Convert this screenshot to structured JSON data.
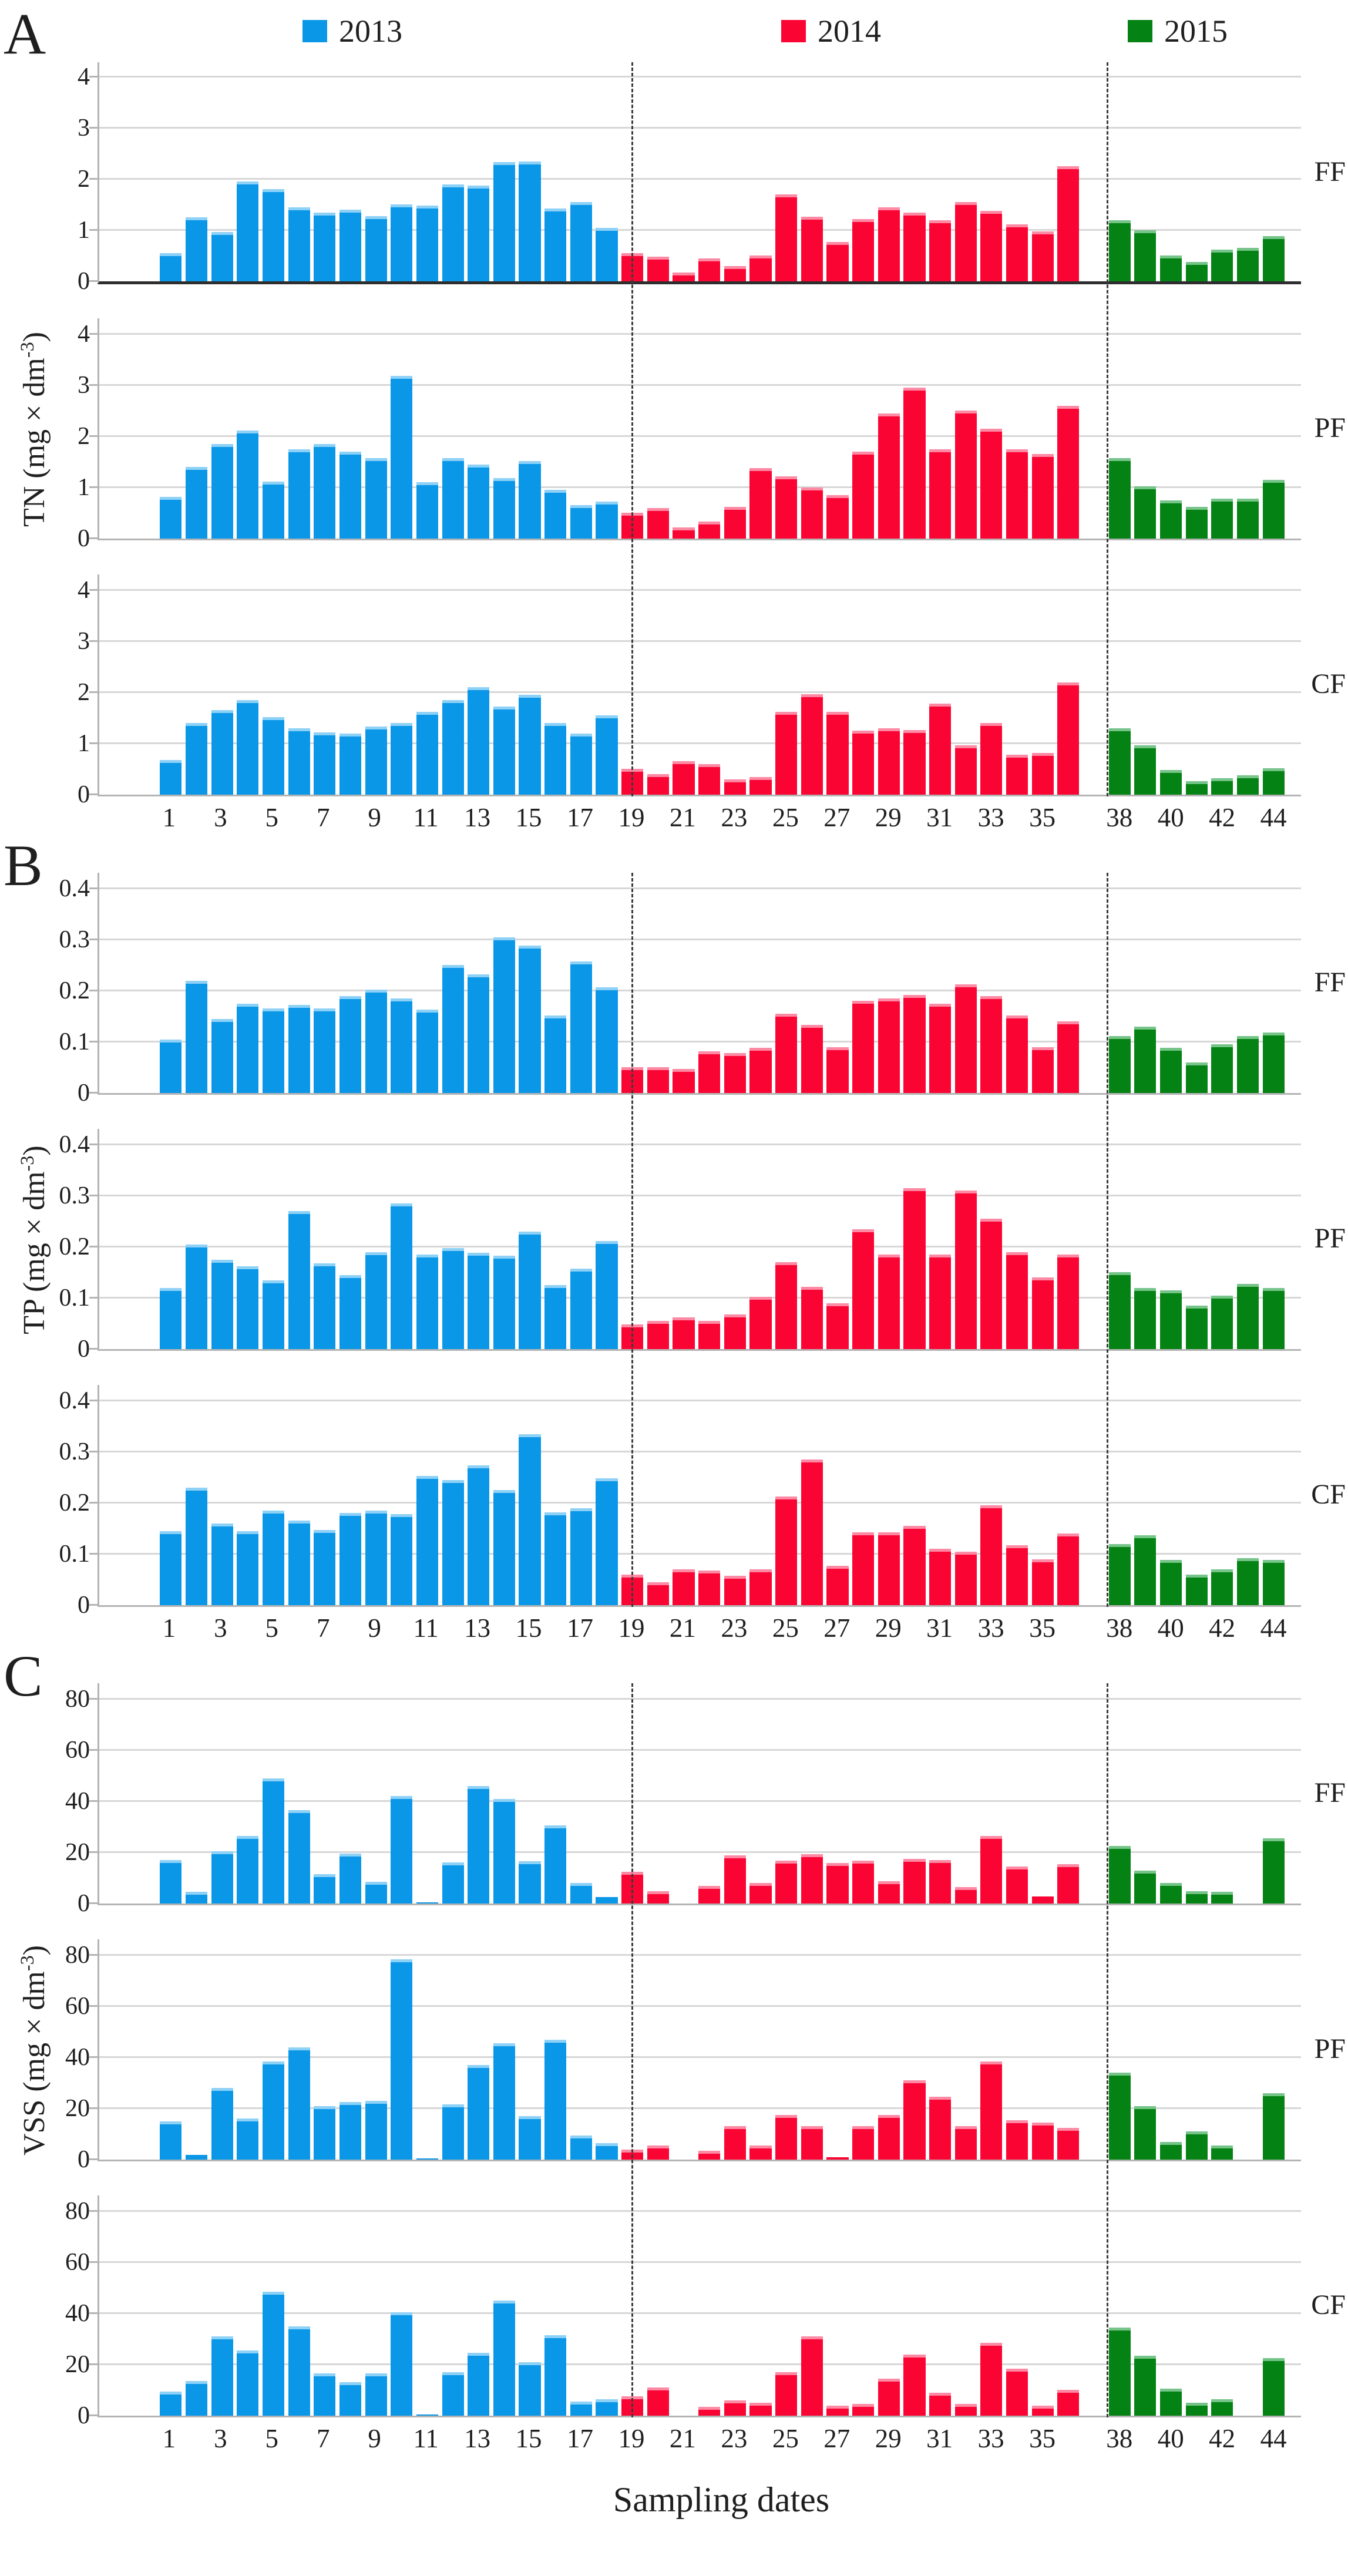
{
  "legend": {
    "items": [
      {
        "label": "2013",
        "color": "#0a97e8"
      },
      {
        "label": "2014",
        "color": "#fa0433"
      },
      {
        "label": "2015",
        "color": "#048213"
      }
    ]
  },
  "groups": [
    {
      "letter": "A",
      "y_title": {
        "pre": "TN (mg × dm",
        "sup": "-3",
        "post": ")"
      }
    },
    {
      "letter": "B",
      "y_title": {
        "pre": "TP (mg × dm",
        "sup": "-3",
        "post": ")"
      }
    },
    {
      "letter": "C",
      "y_title": {
        "pre": "VSS (mg × dm",
        "sup": "-3",
        "post": ")"
      }
    }
  ],
  "x_axis": {
    "title": "Sampling dates",
    "tick_labels": [
      "1",
      "3",
      "5",
      "7",
      "9",
      "11",
      "13",
      "15",
      "17",
      "19",
      "21",
      "23",
      "25",
      "27",
      "29",
      "31",
      "33",
      "35",
      "38",
      "40",
      "42",
      "44"
    ],
    "tick_slots": [
      1,
      3,
      5,
      7,
      9,
      11,
      13,
      15,
      17,
      19,
      21,
      23,
      25,
      27,
      29,
      31,
      33,
      35,
      38,
      40,
      42,
      44
    ]
  },
  "colors": {
    "grid": "#d7d7d7",
    "axis": "#b4b4b4",
    "separator": "#3c3c3c",
    "bar_caps": {
      "2013": "#8ed1f7",
      "2014": "#fc8aa4",
      "2015": "#76c489"
    }
  },
  "chart_data": {
    "type": "bar",
    "title": "TN, TP and VSS concentrations at sites FF, PF, CF over sampling dates 1–44",
    "xlabel": "Sampling dates",
    "grid": true,
    "legend_position": "top",
    "n_slots": 44,
    "empty_slots": [
      37
    ],
    "periods": [
      {
        "year": "2013",
        "color": "#0a97e8",
        "date_range": [
          1,
          18
        ]
      },
      {
        "year": "2014",
        "color": "#fa0433",
        "date_range": [
          19,
          36
        ]
      },
      {
        "year": "2015",
        "color": "#048213",
        "date_range": [
          38,
          44
        ]
      }
    ],
    "separator_positions": [
      18.5,
      37
    ],
    "x_tick_labels": [
      "1",
      "3",
      "5",
      "7",
      "9",
      "11",
      "13",
      "15",
      "17",
      "19",
      "21",
      "23",
      "25",
      "27",
      "29",
      "31",
      "33",
      "35",
      "38",
      "40",
      "42",
      "44"
    ],
    "panels": [
      {
        "group": "A",
        "site": "FF",
        "measure": "TN",
        "ylabel": "TN (mg × dm⁻³)",
        "ylim": [
          0,
          4.35
        ],
        "yticks": [
          0,
          1,
          2,
          3,
          4
        ],
        "values": [
          0.55,
          1.25,
          0.97,
          1.95,
          1.8,
          1.45,
          1.35,
          1.4,
          1.28,
          1.5,
          1.48,
          1.9,
          1.87,
          2.33,
          2.35,
          1.43,
          1.55,
          1.05,
          0.55,
          0.48,
          0.17,
          0.45,
          0.3,
          0.5,
          1.7,
          1.27,
          0.77,
          1.22,
          1.45,
          1.35,
          1.2,
          1.55,
          1.38,
          1.12,
          0.98,
          2.25,
          null,
          1.2,
          1.0,
          0.5,
          0.38,
          0.62,
          0.65,
          0.88
        ]
      },
      {
        "group": "A",
        "site": "PF",
        "measure": "TN",
        "ylabel": "TN (mg × dm⁻³)",
        "ylim": [
          0,
          4.35
        ],
        "yticks": [
          0,
          1,
          2,
          3,
          4
        ],
        "values": [
          0.82,
          1.4,
          1.85,
          2.12,
          1.12,
          1.75,
          1.85,
          1.7,
          1.58,
          3.18,
          1.1,
          1.58,
          1.45,
          1.18,
          1.52,
          0.95,
          0.65,
          0.72,
          0.5,
          0.6,
          0.22,
          0.33,
          0.62,
          1.38,
          1.22,
          1.0,
          0.85,
          1.7,
          2.45,
          2.95,
          1.75,
          2.5,
          2.15,
          1.75,
          1.65,
          2.6,
          null,
          1.58,
          1.02,
          0.75,
          0.62,
          0.78,
          0.78,
          1.15
        ]
      },
      {
        "group": "A",
        "site": "CF",
        "measure": "TN",
        "ylabel": "TN (mg × dm⁻³)",
        "ylim": [
          0,
          4.35
        ],
        "yticks": [
          0,
          1,
          2,
          3,
          4
        ],
        "values": [
          0.68,
          1.4,
          1.65,
          1.85,
          1.52,
          1.3,
          1.22,
          1.2,
          1.33,
          1.4,
          1.62,
          1.85,
          2.1,
          1.72,
          1.95,
          1.4,
          1.2,
          1.55,
          0.5,
          0.4,
          0.65,
          0.6,
          0.3,
          0.35,
          1.62,
          1.97,
          1.62,
          1.25,
          1.3,
          1.27,
          1.78,
          0.97,
          1.4,
          0.78,
          0.82,
          2.2,
          null,
          1.3,
          0.97,
          0.48,
          0.27,
          0.32,
          0.38,
          0.52
        ]
      },
      {
        "group": "B",
        "site": "FF",
        "measure": "TP",
        "ylabel": "TP (mg × dm⁻³)",
        "ylim": [
          0,
          0.435
        ],
        "yticks": [
          0,
          0.1,
          0.2,
          0.3,
          0.4
        ],
        "values": [
          0.105,
          0.22,
          0.145,
          0.175,
          0.165,
          0.172,
          0.165,
          0.19,
          0.202,
          0.185,
          0.163,
          0.25,
          0.232,
          0.305,
          0.288,
          0.152,
          0.258,
          0.207,
          0.05,
          0.05,
          0.047,
          0.082,
          0.078,
          0.088,
          0.155,
          0.133,
          0.09,
          0.18,
          0.185,
          0.192,
          0.175,
          0.213,
          0.19,
          0.152,
          0.09,
          0.14,
          null,
          0.112,
          0.13,
          0.088,
          0.06,
          0.095,
          0.112,
          0.118
        ]
      },
      {
        "group": "B",
        "site": "PF",
        "measure": "TP",
        "ylabel": "TP (mg × dm⁻³)",
        "ylim": [
          0,
          0.435
        ],
        "yticks": [
          0,
          0.1,
          0.2,
          0.3,
          0.4
        ],
        "values": [
          0.12,
          0.205,
          0.175,
          0.162,
          0.135,
          0.27,
          0.168,
          0.145,
          0.19,
          0.285,
          0.185,
          0.198,
          0.188,
          0.183,
          0.23,
          0.125,
          0.157,
          0.212,
          0.048,
          0.055,
          0.062,
          0.055,
          0.068,
          0.102,
          0.17,
          0.122,
          0.09,
          0.235,
          0.185,
          0.315,
          0.185,
          0.31,
          0.255,
          0.19,
          0.14,
          0.185,
          null,
          0.15,
          0.12,
          0.115,
          0.085,
          0.105,
          0.128,
          0.12
        ]
      },
      {
        "group": "B",
        "site": "CF",
        "measure": "TP",
        "ylabel": "TP (mg × dm⁻³)",
        "ylim": [
          0,
          0.435
        ],
        "yticks": [
          0,
          0.1,
          0.2,
          0.3,
          0.4
        ],
        "values": [
          0.145,
          0.23,
          0.16,
          0.145,
          0.185,
          0.165,
          0.147,
          0.18,
          0.185,
          0.178,
          0.253,
          0.245,
          0.273,
          0.225,
          0.335,
          0.182,
          0.19,
          0.248,
          0.06,
          0.045,
          0.07,
          0.068,
          0.057,
          0.07,
          0.213,
          0.285,
          0.077,
          0.143,
          0.143,
          0.155,
          0.11,
          0.105,
          0.195,
          0.117,
          0.09,
          0.14,
          null,
          0.12,
          0.137,
          0.088,
          0.06,
          0.07,
          0.092,
          0.088
        ]
      },
      {
        "group": "C",
        "site": "FF",
        "measure": "VSS",
        "ylabel": "VSS (mg × dm⁻³)",
        "ylim": [
          0,
          87
        ],
        "yticks": [
          0,
          20,
          40,
          60,
          80
        ],
        "values": [
          17,
          4.5,
          20.5,
          26.5,
          49,
          36.5,
          11.5,
          19.5,
          8.5,
          42,
          0.5,
          16,
          46,
          41,
          16.5,
          30.5,
          8,
          2.5,
          12.5,
          4.8,
          null,
          6.8,
          18.8,
          8,
          16.8,
          19.2,
          15.8,
          16.8,
          8.8,
          17.5,
          17,
          6.5,
          26.5,
          14.5,
          2.8,
          15.5,
          null,
          22.5,
          12.8,
          8,
          4.8,
          4.5,
          null,
          25.5
        ]
      },
      {
        "group": "C",
        "site": "PF",
        "measure": "VSS",
        "ylabel": "VSS (mg × dm⁻³)",
        "ylim": [
          0,
          87
        ],
        "yticks": [
          0,
          20,
          40,
          60,
          80
        ],
        "values": [
          15,
          1.8,
          28,
          16,
          38.5,
          44,
          21,
          22.5,
          23,
          78.5,
          0.4,
          21.5,
          37,
          45.5,
          17,
          47,
          9.5,
          6.5,
          4,
          5.5,
          null,
          3.5,
          13,
          5.5,
          17.5,
          13,
          1,
          13,
          17.5,
          31,
          24.5,
          13,
          38.5,
          15.5,
          14.5,
          12.5,
          null,
          34,
          21,
          7,
          11,
          5.5,
          null,
          26
        ]
      },
      {
        "group": "C",
        "site": "CF",
        "measure": "VSS",
        "ylabel": "VSS (mg × dm⁻³)",
        "ylim": [
          0,
          87
        ],
        "yticks": [
          0,
          20,
          40,
          60,
          80
        ],
        "values": [
          9.5,
          13.5,
          31,
          25.5,
          48.5,
          35,
          16.5,
          13,
          16.5,
          40.5,
          0.4,
          17,
          24.5,
          45,
          21,
          31.5,
          5.5,
          6.5,
          7.5,
          11,
          null,
          3.5,
          6,
          5,
          17,
          31,
          4,
          4.5,
          14.5,
          24,
          9,
          4.5,
          28.5,
          18.5,
          3.8,
          10,
          null,
          34.5,
          23.5,
          10.5,
          5,
          6.5,
          null,
          22.5
        ]
      }
    ]
  }
}
